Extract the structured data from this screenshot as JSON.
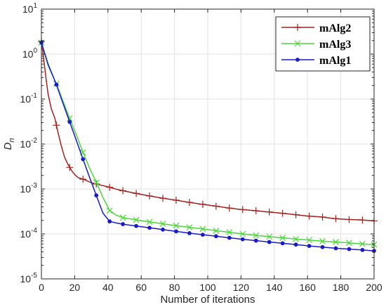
{
  "chart_data": {
    "type": "line",
    "xlabel": "Number of iterations",
    "ylabel": "D",
    "ylabel_sub": "n",
    "xlim": [
      0,
      200
    ],
    "ylim": [
      1e-05,
      10
    ],
    "yscale": "log",
    "grid": true,
    "legend_position": "top-right",
    "x_ticks": [
      0,
      20,
      40,
      60,
      80,
      100,
      120,
      140,
      160,
      180,
      200
    ],
    "y_ticks": [
      {
        "value": 10,
        "base": "10",
        "exp": "1"
      },
      {
        "value": 1,
        "base": "10",
        "exp": "0"
      },
      {
        "value": 0.1,
        "base": "10",
        "exp": "-1"
      },
      {
        "value": 0.01,
        "base": "10",
        "exp": "-2"
      },
      {
        "value": 0.001,
        "base": "10",
        "exp": "-3"
      },
      {
        "value": 0.0001,
        "base": "10",
        "exp": "-4"
      },
      {
        "value": 1e-05,
        "base": "10",
        "exp": "-5"
      }
    ],
    "series": [
      {
        "name": "mAlg2",
        "color": "#A0231E",
        "marker": "plus",
        "x": [
          0,
          1,
          2,
          3,
          4,
          6,
          8,
          10,
          12,
          14,
          16,
          18,
          20,
          22,
          24,
          26,
          28,
          30,
          32,
          36,
          40,
          44,
          48,
          56,
          64,
          72,
          80,
          88,
          96,
          104,
          112,
          120,
          128,
          136,
          144,
          152,
          160,
          168,
          176,
          184,
          192,
          200
        ],
        "y": [
          1.9,
          1.0,
          0.5,
          0.25,
          0.13,
          0.06,
          0.038,
          0.018,
          0.009,
          0.005,
          0.0035,
          0.0026,
          0.0021,
          0.0018,
          0.0017,
          0.0016,
          0.00148,
          0.00138,
          0.00132,
          0.00121,
          0.00112,
          0.00101,
          0.00093,
          0.00081,
          0.00071,
          0.00063,
          0.00057,
          0.00051,
          0.00046,
          0.00042,
          0.00038,
          0.00035,
          0.00033,
          0.00031,
          0.00029,
          0.00027,
          0.00025,
          0.00024,
          0.00022,
          0.00021,
          0.000205,
          0.000195
        ],
        "marker_x": [
          0,
          9,
          17,
          25,
          33,
          41,
          49,
          57,
          65,
          73,
          81,
          89,
          97,
          105,
          113,
          121,
          129,
          137,
          145,
          153,
          161,
          169,
          177,
          185,
          193,
          200
        ]
      },
      {
        "name": "mAlg3",
        "color": "#4CD63C",
        "marker": "cross",
        "x": [
          0,
          4,
          9,
          13,
          17,
          21,
          25,
          29,
          33,
          37,
          41,
          45,
          49,
          57,
          65,
          73,
          81,
          89,
          97,
          105,
          113,
          121,
          129,
          137,
          145,
          153,
          161,
          169,
          177,
          185,
          193,
          200
        ],
        "y": [
          1.8,
          0.55,
          0.22,
          0.09,
          0.037,
          0.016,
          0.0065,
          0.0029,
          0.0014,
          0.00065,
          0.00033,
          0.00026,
          0.00023,
          0.000205,
          0.000185,
          0.000168,
          0.000153,
          0.00014,
          0.000129,
          0.000118,
          0.000109,
          0.0001,
          9.3e-05,
          8.7e-05,
          8.2e-05,
          7.7e-05,
          7.3e-05,
          6.9e-05,
          6.6e-05,
          6.3e-05,
          6e-05,
          5.8e-05
        ],
        "marker_x": [
          0,
          9,
          17,
          25,
          33,
          41,
          49,
          57,
          65,
          73,
          81,
          89,
          97,
          105,
          113,
          121,
          129,
          137,
          145,
          153,
          161,
          169,
          177,
          185,
          193,
          200
        ]
      },
      {
        "name": "mAlg1",
        "color": "#1A1AC8",
        "marker": "dot",
        "x": [
          0,
          4,
          9,
          13,
          17,
          21,
          25,
          29,
          33,
          37,
          41,
          45,
          49,
          57,
          65,
          73,
          81,
          89,
          97,
          105,
          113,
          121,
          129,
          137,
          145,
          153,
          161,
          169,
          177,
          185,
          193,
          200
        ],
        "y": [
          1.8,
          0.6,
          0.21,
          0.08,
          0.031,
          0.012,
          0.0046,
          0.0018,
          0.00072,
          0.00029,
          0.00019,
          0.000175,
          0.000165,
          0.00015,
          0.000137,
          0.000125,
          0.000114,
          0.000104,
          9.6e-05,
          8.9e-05,
          8.2e-05,
          7.6e-05,
          7.1e-05,
          6.6e-05,
          6.2e-05,
          5.8e-05,
          5.4e-05,
          5.1e-05,
          4.8e-05,
          4.6e-05,
          4.4e-05,
          4.2e-05
        ],
        "marker_x": [
          0,
          9,
          17,
          25,
          33,
          41,
          49,
          57,
          65,
          73,
          81,
          89,
          97,
          105,
          113,
          121,
          129,
          137,
          145,
          153,
          161,
          169,
          177,
          185,
          193,
          200
        ]
      }
    ]
  }
}
